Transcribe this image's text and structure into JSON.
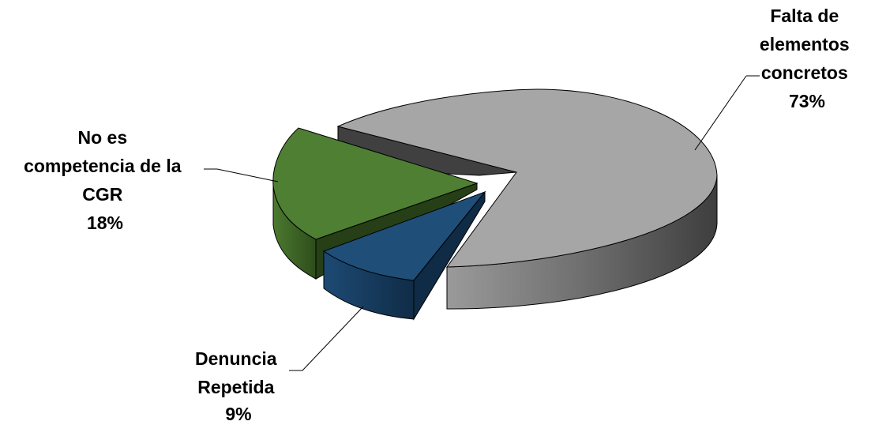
{
  "chart_data": {
    "type": "pie",
    "style": "3d-exploded",
    "slices": [
      {
        "label": [
          "Falta de",
          "elementos",
          "concretos"
        ],
        "value": 73,
        "value_label": "73%",
        "color": "#a6a6a6"
      },
      {
        "label": [
          "No es",
          "competencia de la",
          "CGR"
        ],
        "value": 18,
        "value_label": "18%",
        "color": "#4a7a32"
      },
      {
        "label": [
          "Denuncia",
          "Repetida"
        ],
        "value": 9,
        "value_label": "9%",
        "color": "#1f4e79"
      }
    ]
  }
}
